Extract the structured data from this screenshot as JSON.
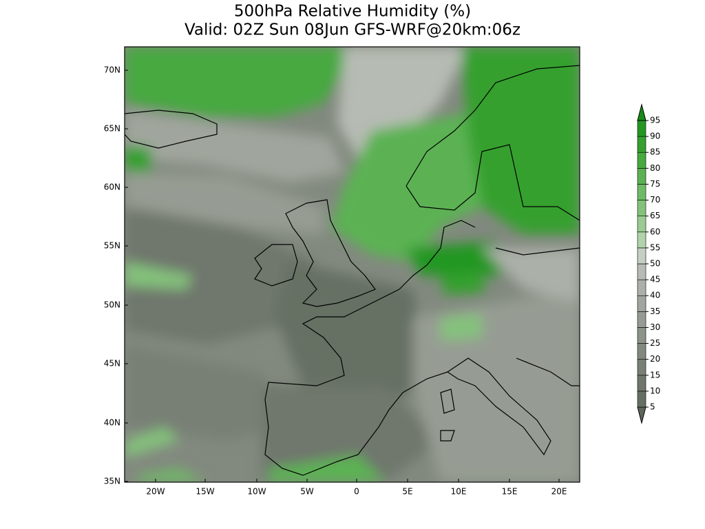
{
  "title": [
    "500hPa Relative Humidity (%)",
    "Valid: 02Z Sun 08Jun GFS-WRF@20km:06z"
  ],
  "map": {
    "lat_labels": [
      "70N",
      "65N",
      "60N",
      "55N",
      "50N",
      "45N",
      "40N",
      "35N"
    ],
    "lon_labels": [
      "20W",
      "15W",
      "10W",
      "5W",
      "0",
      "5E",
      "10E",
      "15E",
      "20E"
    ]
  },
  "colorbar": {
    "levels": [
      5,
      10,
      15,
      20,
      25,
      30,
      35,
      40,
      45,
      50,
      55,
      60,
      65,
      70,
      75,
      80,
      85,
      90,
      95
    ],
    "colors": [
      "#5d665b",
      "#666f64",
      "#6f776d",
      "#788076",
      "#82897f",
      "#8c9389",
      "#969c93",
      "#a0a69d",
      "#abb0a8",
      "#b6bbb3",
      "#c5cfc2",
      "#b0d3aa",
      "#9acb92",
      "#84c27b",
      "#6fba66",
      "#5bb252",
      "#47a93f",
      "#35a02f",
      "#249722",
      "#178d18"
    ]
  }
}
